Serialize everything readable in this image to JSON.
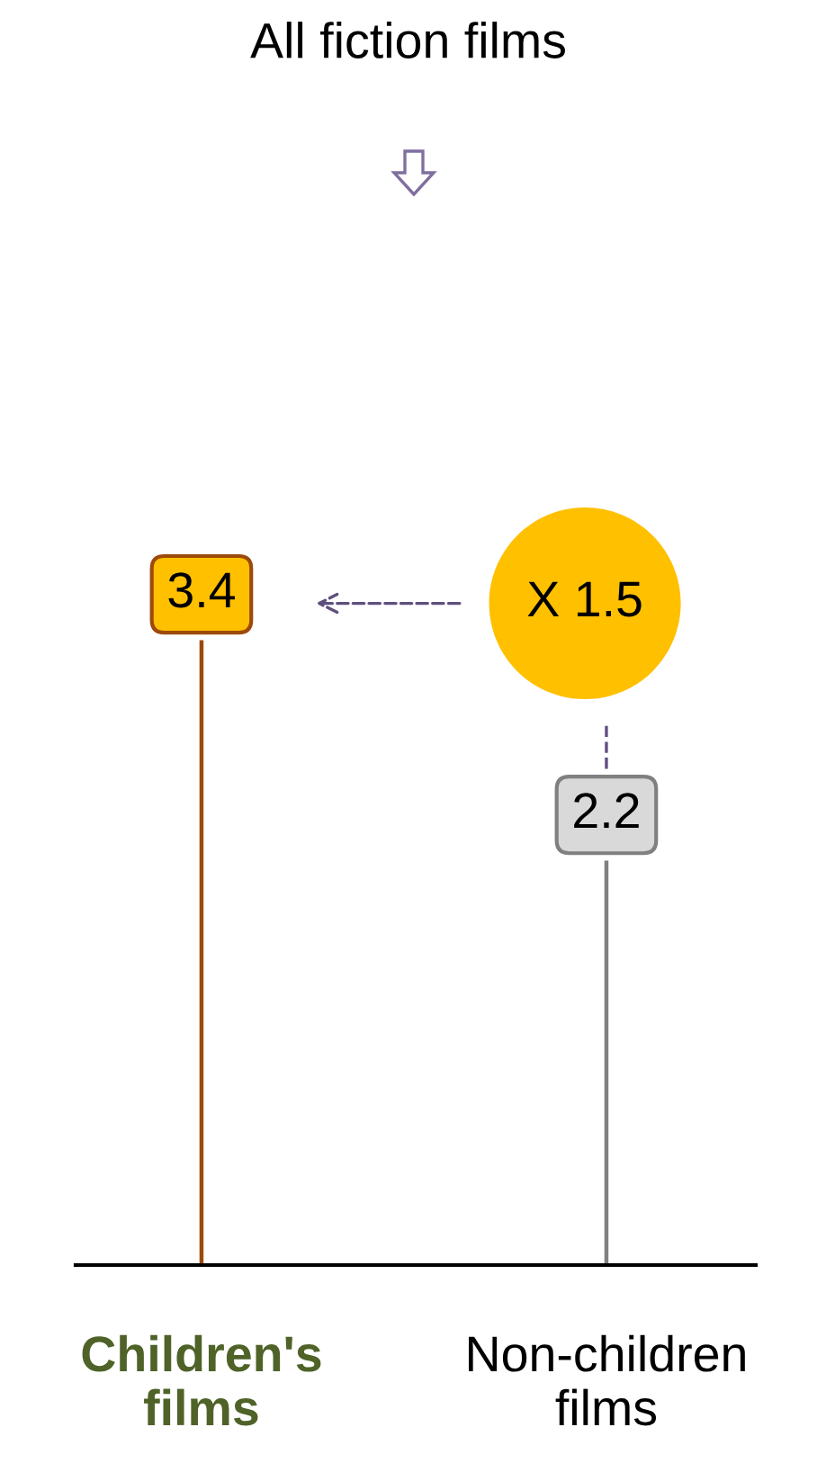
{
  "chart_data": {
    "type": "bar",
    "title": "All fiction films",
    "categories": [
      "Children's films",
      "Non-children films"
    ],
    "values": [
      3.4,
      2.2
    ],
    "colors": [
      "#9c4a0a",
      "#808080"
    ],
    "data_labels": true,
    "annotations": [
      "X 1.5"
    ]
  }
}
